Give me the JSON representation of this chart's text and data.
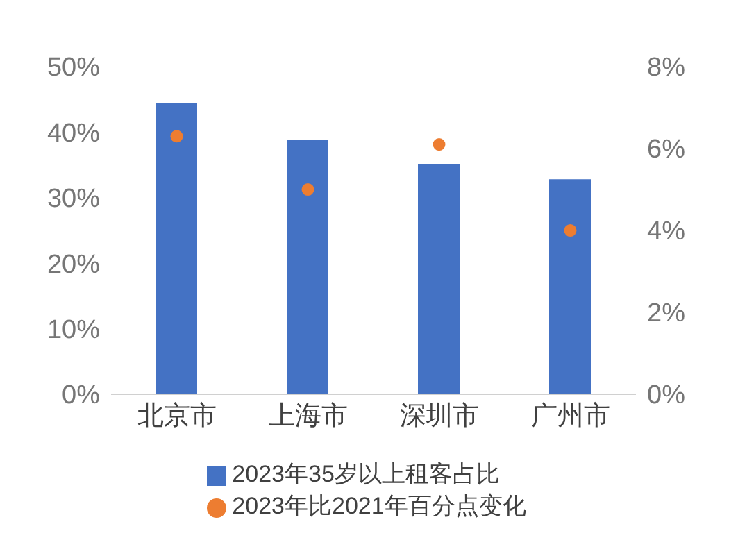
{
  "chart_data": {
    "type": "bar",
    "categories": [
      "北京市",
      "上海市",
      "深圳市",
      "广州市"
    ],
    "series": [
      {
        "name": "2023年35岁以上租客占比",
        "color": "#4472c4",
        "values": [
          44.4,
          38.8,
          35.1,
          32.8
        ]
      },
      {
        "name": "2023年比2021年百分点变化",
        "type": "scatter",
        "axis": "y2",
        "color": "#ed7d31",
        "values": [
          6.3,
          5.0,
          6.1,
          4.0
        ]
      }
    ],
    "ylim": [
      0,
      50
    ],
    "yticks": [
      {
        "value": 0,
        "label": "0%"
      },
      {
        "value": 10,
        "label": "10%"
      },
      {
        "value": 20,
        "label": "20%"
      },
      {
        "value": 30,
        "label": "30%"
      },
      {
        "value": 40,
        "label": "40%"
      },
      {
        "value": 50,
        "label": "50%"
      }
    ],
    "y2lim": [
      0,
      8
    ],
    "y2ticks": [
      {
        "value": 0,
        "label": "0%"
      },
      {
        "value": 2,
        "label": "2%"
      },
      {
        "value": 4,
        "label": "4%"
      },
      {
        "value": 6,
        "label": "6%"
      },
      {
        "value": 8,
        "label": "8%"
      }
    ],
    "grid": false,
    "legend": "bottom",
    "marker": "circle"
  }
}
